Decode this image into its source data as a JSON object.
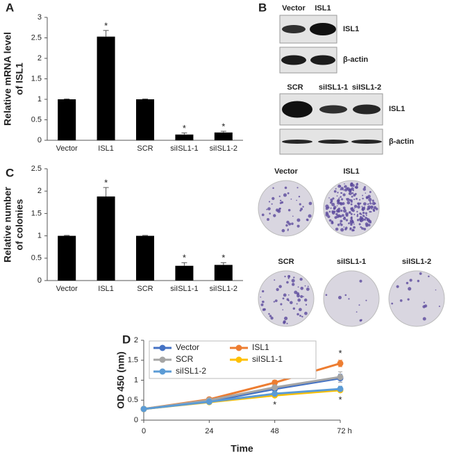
{
  "panel_labels": [
    "A",
    "B",
    "C",
    "D"
  ],
  "chart_data": [
    {
      "type": "bar",
      "ylabel": [
        "Relative mRNA level",
        "of ISL1"
      ],
      "categories": [
        "Vector",
        "ISL1",
        "SCR",
        "siISL1-1",
        "siISL1-2"
      ],
      "values": [
        1,
        2.53,
        1,
        0.14,
        0.19
      ],
      "errors": [
        0.01,
        0.15,
        0.01,
        0.04,
        0.03
      ],
      "significance": [
        null,
        "*",
        null,
        "*",
        "*"
      ],
      "color": "#000000",
      "ylim": [
        0,
        3
      ],
      "yticks": [
        0,
        0.5,
        1,
        1.5,
        2,
        2.5,
        3
      ]
    },
    {
      "type": "bar",
      "ylabel": [
        "Relative number",
        "of colonies"
      ],
      "categories": [
        "Vector",
        "ISL1",
        "SCR",
        "siISL1-1",
        "siISL1-2"
      ],
      "values": [
        1,
        1.88,
        1,
        0.33,
        0.35
      ],
      "errors": [
        0.01,
        0.2,
        0.01,
        0.07,
        0.05
      ],
      "significance": [
        null,
        "*",
        null,
        "*",
        "*"
      ],
      "color": "#000000",
      "ylim": [
        0,
        2.5
      ],
      "yticks": [
        0,
        0.5,
        1,
        1.5,
        2,
        2.5
      ]
    },
    {
      "type": "line",
      "xlabel": "Time",
      "ylabel": "OD 450 (nm)",
      "x": [
        0,
        24,
        48,
        72
      ],
      "xlim": [
        0,
        72
      ],
      "xticks": [
        0,
        24,
        48,
        {
          "value": 72,
          "label": "72 h"
        }
      ],
      "ylim": [
        0,
        2
      ],
      "yticks": [
        0,
        0.5,
        1,
        1.5,
        2
      ],
      "series": [
        {
          "name": "Vector",
          "color": "#4472c4",
          "values": [
            0.28,
            0.47,
            0.78,
            1.05
          ],
          "errors": [
            0.02,
            0.03,
            0.05,
            0.1
          ],
          "significance": [
            null,
            null,
            null,
            null
          ]
        },
        {
          "name": "ISL1",
          "color": "#ed7d31",
          "values": [
            0.28,
            0.52,
            0.94,
            1.42
          ],
          "errors": [
            0.02,
            0.03,
            0.06,
            0.08
          ],
          "significance": [
            null,
            null,
            "*",
            "*"
          ]
        },
        {
          "name": "SCR",
          "color": "#a5a5a5",
          "values": [
            0.28,
            0.5,
            0.82,
            1.08
          ],
          "errors": [
            0.02,
            0.03,
            0.05,
            0.13
          ],
          "significance": [
            null,
            null,
            null,
            null
          ]
        },
        {
          "name": "siISL1-1",
          "color": "#ffc000",
          "values": [
            0.28,
            0.45,
            0.62,
            0.75
          ],
          "errors": [
            0.02,
            0.03,
            0.04,
            0.05
          ],
          "significance": [
            null,
            null,
            "*",
            "*"
          ]
        },
        {
          "name": "siISL1-2",
          "color": "#5b9bd5",
          "values": [
            0.28,
            0.46,
            0.66,
            0.78
          ],
          "errors": [
            0.02,
            0.03,
            0.07,
            0.07
          ],
          "significance": [
            null,
            null,
            null,
            null
          ]
        }
      ]
    }
  ],
  "blot": {
    "top": {
      "lanes": [
        "Vector",
        "ISL1"
      ],
      "rows": [
        "ISL1",
        "β-actin"
      ]
    },
    "bottom": {
      "lanes": [
        "SCR",
        "siISL1-1",
        "siISL1-2"
      ],
      "rows": [
        "ISL1",
        "β-actin"
      ]
    }
  },
  "colonies": {
    "labels": [
      "Vector",
      "ISL1",
      "SCR",
      "siISL1-1",
      "siISL1-2"
    ]
  }
}
